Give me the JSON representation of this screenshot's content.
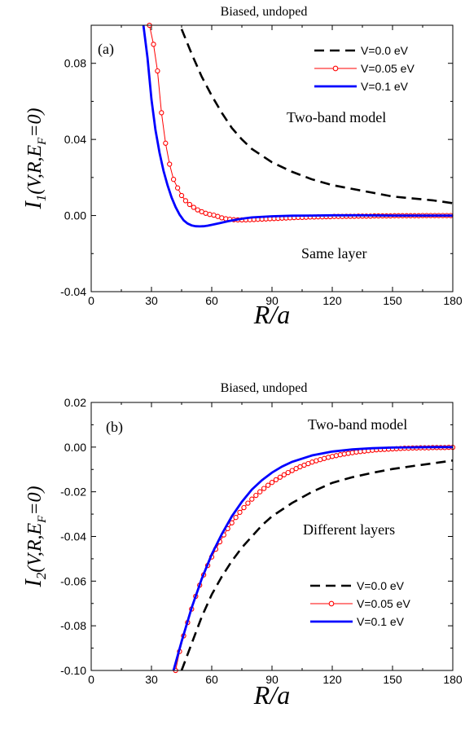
{
  "chart_data": [
    {
      "type": "line",
      "panel_label": "(a)",
      "title": "Biased, undoped",
      "annotations": [
        "Two-band model",
        "Same layer"
      ],
      "xlabel": "R/a",
      "ylabel": {
        "main": "I",
        "sub": "1",
        "args": "(V,R,E",
        "args_sub": "F",
        "tail": "=0)"
      },
      "xlim": [
        0,
        180
      ],
      "ylim": [
        -0.04,
        0.1
      ],
      "xticks": [
        "0",
        "30",
        "60",
        "90",
        "120",
        "150",
        "180"
      ],
      "yticks": [
        "-0.04",
        "0.00",
        "0.04",
        "0.08"
      ],
      "legend_position": "top-right",
      "series": [
        {
          "name": "V=0.0 eV",
          "color": "#000000",
          "style": "dashed",
          "x": [
            45,
            50,
            55,
            60,
            65,
            70,
            75,
            80,
            90,
            100,
            110,
            120,
            130,
            140,
            150,
            160,
            170,
            180
          ],
          "y": [
            0.098,
            0.085,
            0.073,
            0.063,
            0.054,
            0.046,
            0.04,
            0.035,
            0.028,
            0.023,
            0.019,
            0.016,
            0.014,
            0.012,
            0.01,
            0.009,
            0.008,
            0.0065
          ]
        },
        {
          "name": "V=0.05 eV",
          "color": "#ff0000",
          "style": "line-circle",
          "x": [
            29,
            31,
            33,
            35,
            37,
            39,
            41,
            43,
            45,
            47,
            49,
            51,
            53,
            55,
            57,
            59,
            61,
            63,
            65,
            67,
            69,
            71,
            73,
            75,
            77,
            79,
            81,
            83,
            85,
            87,
            89,
            91,
            93,
            95,
            97,
            99,
            101,
            103,
            105,
            107,
            109,
            111,
            113,
            115,
            117,
            119,
            121,
            123,
            125,
            127,
            129,
            131,
            133,
            135,
            137,
            139,
            141,
            143,
            145,
            147,
            149,
            151,
            153,
            155,
            157,
            159,
            161,
            163,
            165,
            167,
            169,
            171,
            173,
            175,
            177,
            179
          ],
          "y": [
            0.1,
            0.09,
            0.076,
            0.054,
            0.038,
            0.027,
            0.019,
            0.0145,
            0.0105,
            0.0078,
            0.0058,
            0.0043,
            0.003,
            0.002,
            0.0012,
            0.0006,
            0.0002,
            -0.0005,
            -0.0012,
            -0.0017,
            -0.002,
            -0.0022,
            -0.0023,
            -0.0023,
            -0.0023,
            -0.0022,
            -0.0021,
            -0.002,
            -0.0019,
            -0.0018,
            -0.0017,
            -0.0016,
            -0.0015,
            -0.0014,
            -0.0013,
            -0.0012,
            -0.0011,
            -0.001,
            -0.001,
            -0.0009,
            -0.0008,
            -0.0008,
            -0.0007,
            -0.0007,
            -0.0006,
            -0.0006,
            -0.0005,
            -0.0005,
            -0.0005,
            -0.0004,
            -0.0004,
            -0.0004,
            -0.0003,
            -0.0003,
            -0.0003,
            -0.0003,
            -0.0002,
            -0.0002,
            -0.0002,
            -0.0002,
            -0.0002,
            -0.0001,
            -0.0001,
            -0.0001,
            -0.0001,
            -0.0001,
            -0.0001,
            -0.0001,
            0,
            0,
            0,
            0,
            0,
            0,
            0,
            0
          ]
        },
        {
          "name": "V=0.1 eV",
          "color": "#0000ff",
          "style": "solid",
          "x": [
            26,
            28,
            30,
            32,
            34,
            36,
            38,
            40,
            42,
            44,
            46,
            48,
            50,
            52,
            54,
            56,
            58,
            60,
            64,
            68,
            72,
            76,
            80,
            90,
            100,
            110,
            120,
            135,
            150,
            165,
            180
          ],
          "y": [
            0.1,
            0.083,
            0.061,
            0.045,
            0.033,
            0.0235,
            0.016,
            0.0095,
            0.0045,
            0.0005,
            -0.0025,
            -0.0042,
            -0.0052,
            -0.0056,
            -0.0057,
            -0.0056,
            -0.0053,
            -0.0049,
            -0.004,
            -0.003,
            -0.0022,
            -0.0015,
            -0.001,
            -0.0004,
            -0.0001,
            0.0,
            0.0001,
            0.0001,
            0.0,
            0.0,
            0.0
          ]
        }
      ]
    },
    {
      "type": "line",
      "panel_label": "(b)",
      "title": "Biased, undoped",
      "annotations": [
        "Two-band model",
        "Different layers"
      ],
      "xlabel": "R/a",
      "ylabel": {
        "main": "I",
        "sub": "2",
        "args": "(V,R,E",
        "args_sub": "F",
        "tail": "=0)"
      },
      "xlim": [
        0,
        180
      ],
      "ylim": [
        -0.1,
        0.02
      ],
      "xticks": [
        "0",
        "30",
        "60",
        "90",
        "120",
        "150",
        "180"
      ],
      "yticks": [
        "-0.10",
        "-0.08",
        "-0.06",
        "-0.04",
        "-0.02",
        "0.00",
        "0.02"
      ],
      "legend_position": "bottom-right",
      "series": [
        {
          "name": "V=0.0 eV",
          "color": "#000000",
          "style": "dashed",
          "x": [
            45,
            50,
            55,
            60,
            65,
            70,
            75,
            80,
            85,
            90,
            100,
            110,
            120,
            130,
            140,
            150,
            160,
            170,
            180
          ],
          "y": [
            -0.1,
            -0.088,
            -0.076,
            -0.066,
            -0.058,
            -0.051,
            -0.045,
            -0.04,
            -0.035,
            -0.031,
            -0.025,
            -0.02,
            -0.016,
            -0.0135,
            -0.0115,
            -0.0098,
            -0.0085,
            -0.0073,
            -0.006
          ]
        },
        {
          "name": "V=0.05 eV",
          "color": "#ff0000",
          "style": "line-circle",
          "x": [
            42,
            44,
            46,
            48,
            50,
            52,
            54,
            56,
            58,
            60,
            62,
            64,
            66,
            68,
            70,
            72,
            74,
            76,
            78,
            80,
            82,
            84,
            86,
            88,
            90,
            92,
            94,
            96,
            98,
            100,
            102,
            104,
            106,
            108,
            110,
            112,
            114,
            116,
            118,
            120,
            122,
            124,
            126,
            128,
            130,
            132,
            134,
            136,
            138,
            140,
            142,
            144,
            146,
            148,
            150,
            152,
            154,
            156,
            158,
            160,
            162,
            164,
            166,
            168,
            170,
            172,
            174,
            176,
            178,
            180
          ],
          "y": [
            -0.1,
            -0.0915,
            -0.0845,
            -0.0785,
            -0.0725,
            -0.0668,
            -0.0618,
            -0.0572,
            -0.053,
            -0.0492,
            -0.0457,
            -0.0424,
            -0.0393,
            -0.0365,
            -0.0339,
            -0.0315,
            -0.0292,
            -0.0271,
            -0.0251,
            -0.0233,
            -0.0216,
            -0.02,
            -0.0185,
            -0.0171,
            -0.0158,
            -0.0146,
            -0.0135,
            -0.0124,
            -0.0114,
            -0.0105,
            -0.0096,
            -0.0088,
            -0.0081,
            -0.0074,
            -0.0067,
            -0.0061,
            -0.0056,
            -0.0051,
            -0.0046,
            -0.0042,
            -0.0038,
            -0.0034,
            -0.0031,
            -0.0028,
            -0.0025,
            -0.0022,
            -0.002,
            -0.0018,
            -0.0016,
            -0.0014,
            -0.0012,
            -0.0011,
            -0.001,
            -0.0009,
            -0.0008,
            -0.0007,
            -0.0006,
            -0.0005,
            -0.0005,
            -0.0004,
            -0.0004,
            -0.0003,
            -0.0003,
            -0.0003,
            -0.0002,
            -0.0002,
            -0.0002,
            -0.0002,
            -0.0001,
            -0.0001
          ]
        },
        {
          "name": "V=0.1 eV",
          "color": "#0000ff",
          "style": "solid",
          "x": [
            41,
            45,
            50,
            55,
            60,
            65,
            70,
            75,
            80,
            85,
            90,
            95,
            100,
            110,
            120,
            130,
            140,
            150,
            160,
            170,
            180
          ],
          "y": [
            -0.1,
            -0.087,
            -0.072,
            -0.059,
            -0.048,
            -0.039,
            -0.031,
            -0.0245,
            -0.019,
            -0.0148,
            -0.0114,
            -0.0087,
            -0.0066,
            -0.0037,
            -0.002,
            -0.001,
            -0.0005,
            -0.0002,
            -0.0001,
            0.0,
            0.0
          ]
        }
      ]
    }
  ]
}
